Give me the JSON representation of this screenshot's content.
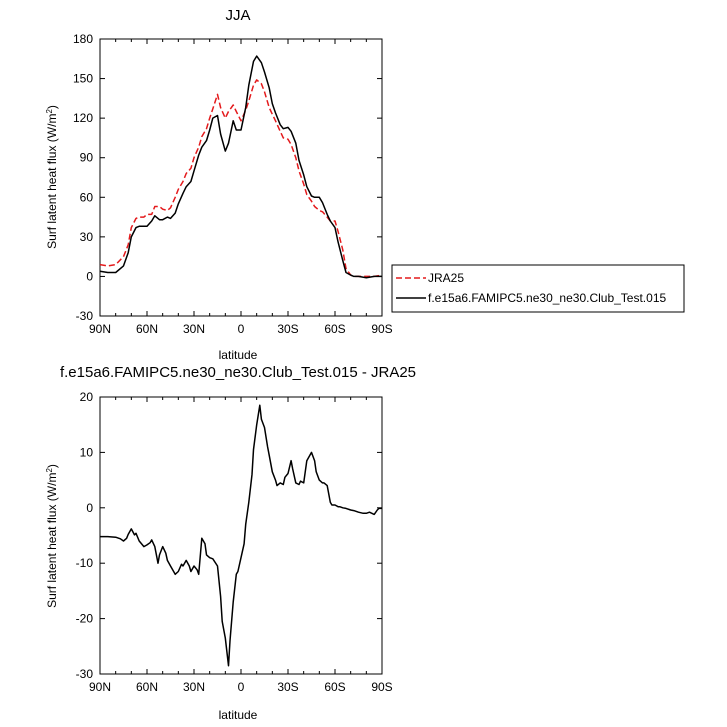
{
  "chart_data": [
    {
      "type": "line",
      "title": "JJA",
      "xlabel": "latitude",
      "ylabel": "Surf latent heat flux (W/m",
      "ylabel_sup": "2",
      "ylabel_close": ")",
      "ylim": [
        -30,
        180
      ],
      "yticks": [
        -30,
        0,
        30,
        60,
        90,
        120,
        150,
        180
      ],
      "xlim": [
        90,
        -90
      ],
      "xticks": [
        {
          "x": 90,
          "label": "90N"
        },
        {
          "x": 60,
          "label": "60N"
        },
        {
          "x": 30,
          "label": "30N"
        },
        {
          "x": 0,
          "label": "0"
        },
        {
          "x": -30,
          "label": "30S"
        },
        {
          "x": -60,
          "label": "60S"
        },
        {
          "x": -90,
          "label": "90S"
        }
      ],
      "grid": false,
      "legend_position": "right",
      "series": [
        {
          "name": "JRA25",
          "color": "#e41a1c",
          "dash": "dashed",
          "x": [
            90,
            85,
            80,
            75,
            72,
            70,
            67,
            65,
            62,
            60,
            57,
            55,
            52,
            50,
            47,
            45,
            42,
            40,
            37,
            35,
            32,
            30,
            27,
            25,
            22,
            20,
            18,
            15,
            13,
            10,
            8,
            5,
            3,
            0,
            -3,
            -5,
            -8,
            -10,
            -13,
            -15,
            -18,
            -20,
            -22,
            -25,
            -27,
            -30,
            -32,
            -35,
            -37,
            -40,
            -42,
            -45,
            -47,
            -50,
            -52,
            -55,
            -57,
            -60,
            -62,
            -65,
            -67,
            -70,
            -72,
            -75,
            -80,
            -85,
            -90
          ],
          "y": [
            9,
            8,
            9,
            15,
            24,
            37,
            44,
            45,
            45,
            47,
            47,
            53,
            53,
            51,
            50,
            52,
            60,
            66,
            72,
            78,
            82,
            90,
            98,
            106,
            112,
            120,
            127,
            138,
            128,
            120,
            125,
            130,
            125,
            118,
            126,
            133,
            145,
            149,
            146,
            140,
            128,
            123,
            118,
            110,
            105,
            104,
            100,
            90,
            80,
            70,
            62,
            57,
            53,
            50,
            49,
            45,
            42,
            42,
            34,
            20,
            6,
            1,
            0,
            0,
            0,
            0,
            1
          ]
        },
        {
          "name": "f.e15a6.FAMIPC5.ne30_ne30.Club_Test.015",
          "color": "#000000",
          "dash": "solid",
          "x": [
            90,
            85,
            80,
            75,
            72,
            70,
            67,
            65,
            62,
            60,
            57,
            55,
            52,
            50,
            47,
            45,
            42,
            40,
            37,
            35,
            32,
            30,
            27,
            25,
            22,
            20,
            18,
            15,
            13,
            10,
            8,
            5,
            3,
            0,
            -3,
            -5,
            -8,
            -10,
            -13,
            -15,
            -18,
            -20,
            -22,
            -25,
            -27,
            -30,
            -32,
            -35,
            -37,
            -40,
            -42,
            -45,
            -47,
            -50,
            -52,
            -55,
            -57,
            -60,
            -62,
            -65,
            -67,
            -70,
            -72,
            -75,
            -80,
            -85,
            -90
          ],
          "y": [
            4,
            3,
            3,
            8,
            18,
            30,
            37,
            38,
            38,
            38,
            42,
            46,
            43,
            43,
            45,
            44,
            48,
            55,
            63,
            68,
            72,
            80,
            92,
            98,
            103,
            111,
            120,
            122,
            108,
            95,
            101,
            118,
            111,
            111,
            128,
            145,
            163,
            167,
            162,
            155,
            143,
            131,
            124,
            115,
            112,
            113,
            110,
            101,
            88,
            77,
            68,
            61,
            60,
            60,
            56,
            47,
            42,
            37,
            26,
            12,
            3,
            1,
            0,
            0,
            -1,
            0,
            0
          ]
        }
      ]
    },
    {
      "type": "line",
      "title": "f.e15a6.FAMIPC5.ne30_ne30.Club_Test.015 - JRA25",
      "xlabel": "latitude",
      "ylabel": "Surf latent heat flux (W/m",
      "ylabel_sup": "2",
      "ylabel_close": ")",
      "ylim": [
        -30,
        20
      ],
      "yticks": [
        -30,
        -20,
        -10,
        0,
        10,
        20
      ],
      "xlim": [
        90,
        -90
      ],
      "xticks": [
        {
          "x": 90,
          "label": "90N"
        },
        {
          "x": 60,
          "label": "60N"
        },
        {
          "x": 30,
          "label": "30N"
        },
        {
          "x": 0,
          "label": "0"
        },
        {
          "x": -30,
          "label": "30S"
        },
        {
          "x": -60,
          "label": "60S"
        },
        {
          "x": -90,
          "label": "90S"
        }
      ],
      "grid": false,
      "series": [
        {
          "color": "#000000",
          "dash": "solid",
          "x": [
            90,
            85,
            80,
            77,
            75,
            73,
            72,
            70,
            68,
            67,
            65,
            62,
            60,
            58,
            57,
            55,
            53,
            52,
            50,
            48,
            47,
            45,
            42,
            40,
            38,
            37,
            35,
            33,
            32,
            30,
            28,
            27,
            25,
            23,
            22,
            20,
            18,
            15,
            13,
            12,
            10,
            8,
            7,
            5,
            3,
            2,
            0,
            -2,
            -3,
            -5,
            -7,
            -8,
            -10,
            -12,
            -13,
            -15,
            -17,
            -18,
            -20,
            -22,
            -23,
            -25,
            -27,
            -28,
            -30,
            -32,
            -33,
            -35,
            -37,
            -38,
            -40,
            -42,
            -43,
            -45,
            -47,
            -48,
            -50,
            -52,
            -53,
            -55,
            -57,
            -58,
            -60,
            -62,
            -63,
            -65,
            -67,
            -70,
            -72,
            -75,
            -78,
            -80,
            -82,
            -85,
            -87,
            -88,
            -90
          ],
          "y": [
            -5.2,
            -5.2,
            -5.3,
            -5.6,
            -6.0,
            -5.5,
            -4.8,
            -3.8,
            -4.9,
            -4.6,
            -6.0,
            -7.0,
            -6.7,
            -6.3,
            -5.8,
            -7.0,
            -10.0,
            -8.5,
            -7.0,
            -8.2,
            -9.5,
            -10.5,
            -12.0,
            -11.5,
            -10.2,
            -10.5,
            -9.5,
            -10.5,
            -11.5,
            -10.5,
            -11.2,
            -12.0,
            -5.5,
            -6.5,
            -8.5,
            -9.0,
            -9.2,
            -10.5,
            -16.0,
            -20.5,
            -23.5,
            -28.5,
            -24.0,
            -17.0,
            -12.0,
            -11.5,
            -9.0,
            -6.5,
            -3.0,
            1.0,
            6.0,
            10.5,
            15.0,
            18.5,
            16.0,
            14.5,
            11.0,
            9.5,
            6.5,
            5.0,
            4.0,
            4.5,
            4.2,
            5.5,
            6.2,
            8.5,
            7.0,
            4.5,
            4.2,
            4.8,
            4.5,
            8.5,
            9.0,
            10.0,
            8.5,
            6.5,
            5.0,
            4.5,
            4.5,
            4.0,
            1.0,
            0.5,
            0.5,
            0.2,
            0.2,
            0.0,
            -0.1,
            -0.4,
            -0.5,
            -0.8,
            -1.0,
            -1.0,
            -0.8,
            -1.2,
            -0.4,
            -0.1,
            -0.1
          ]
        }
      ]
    }
  ]
}
